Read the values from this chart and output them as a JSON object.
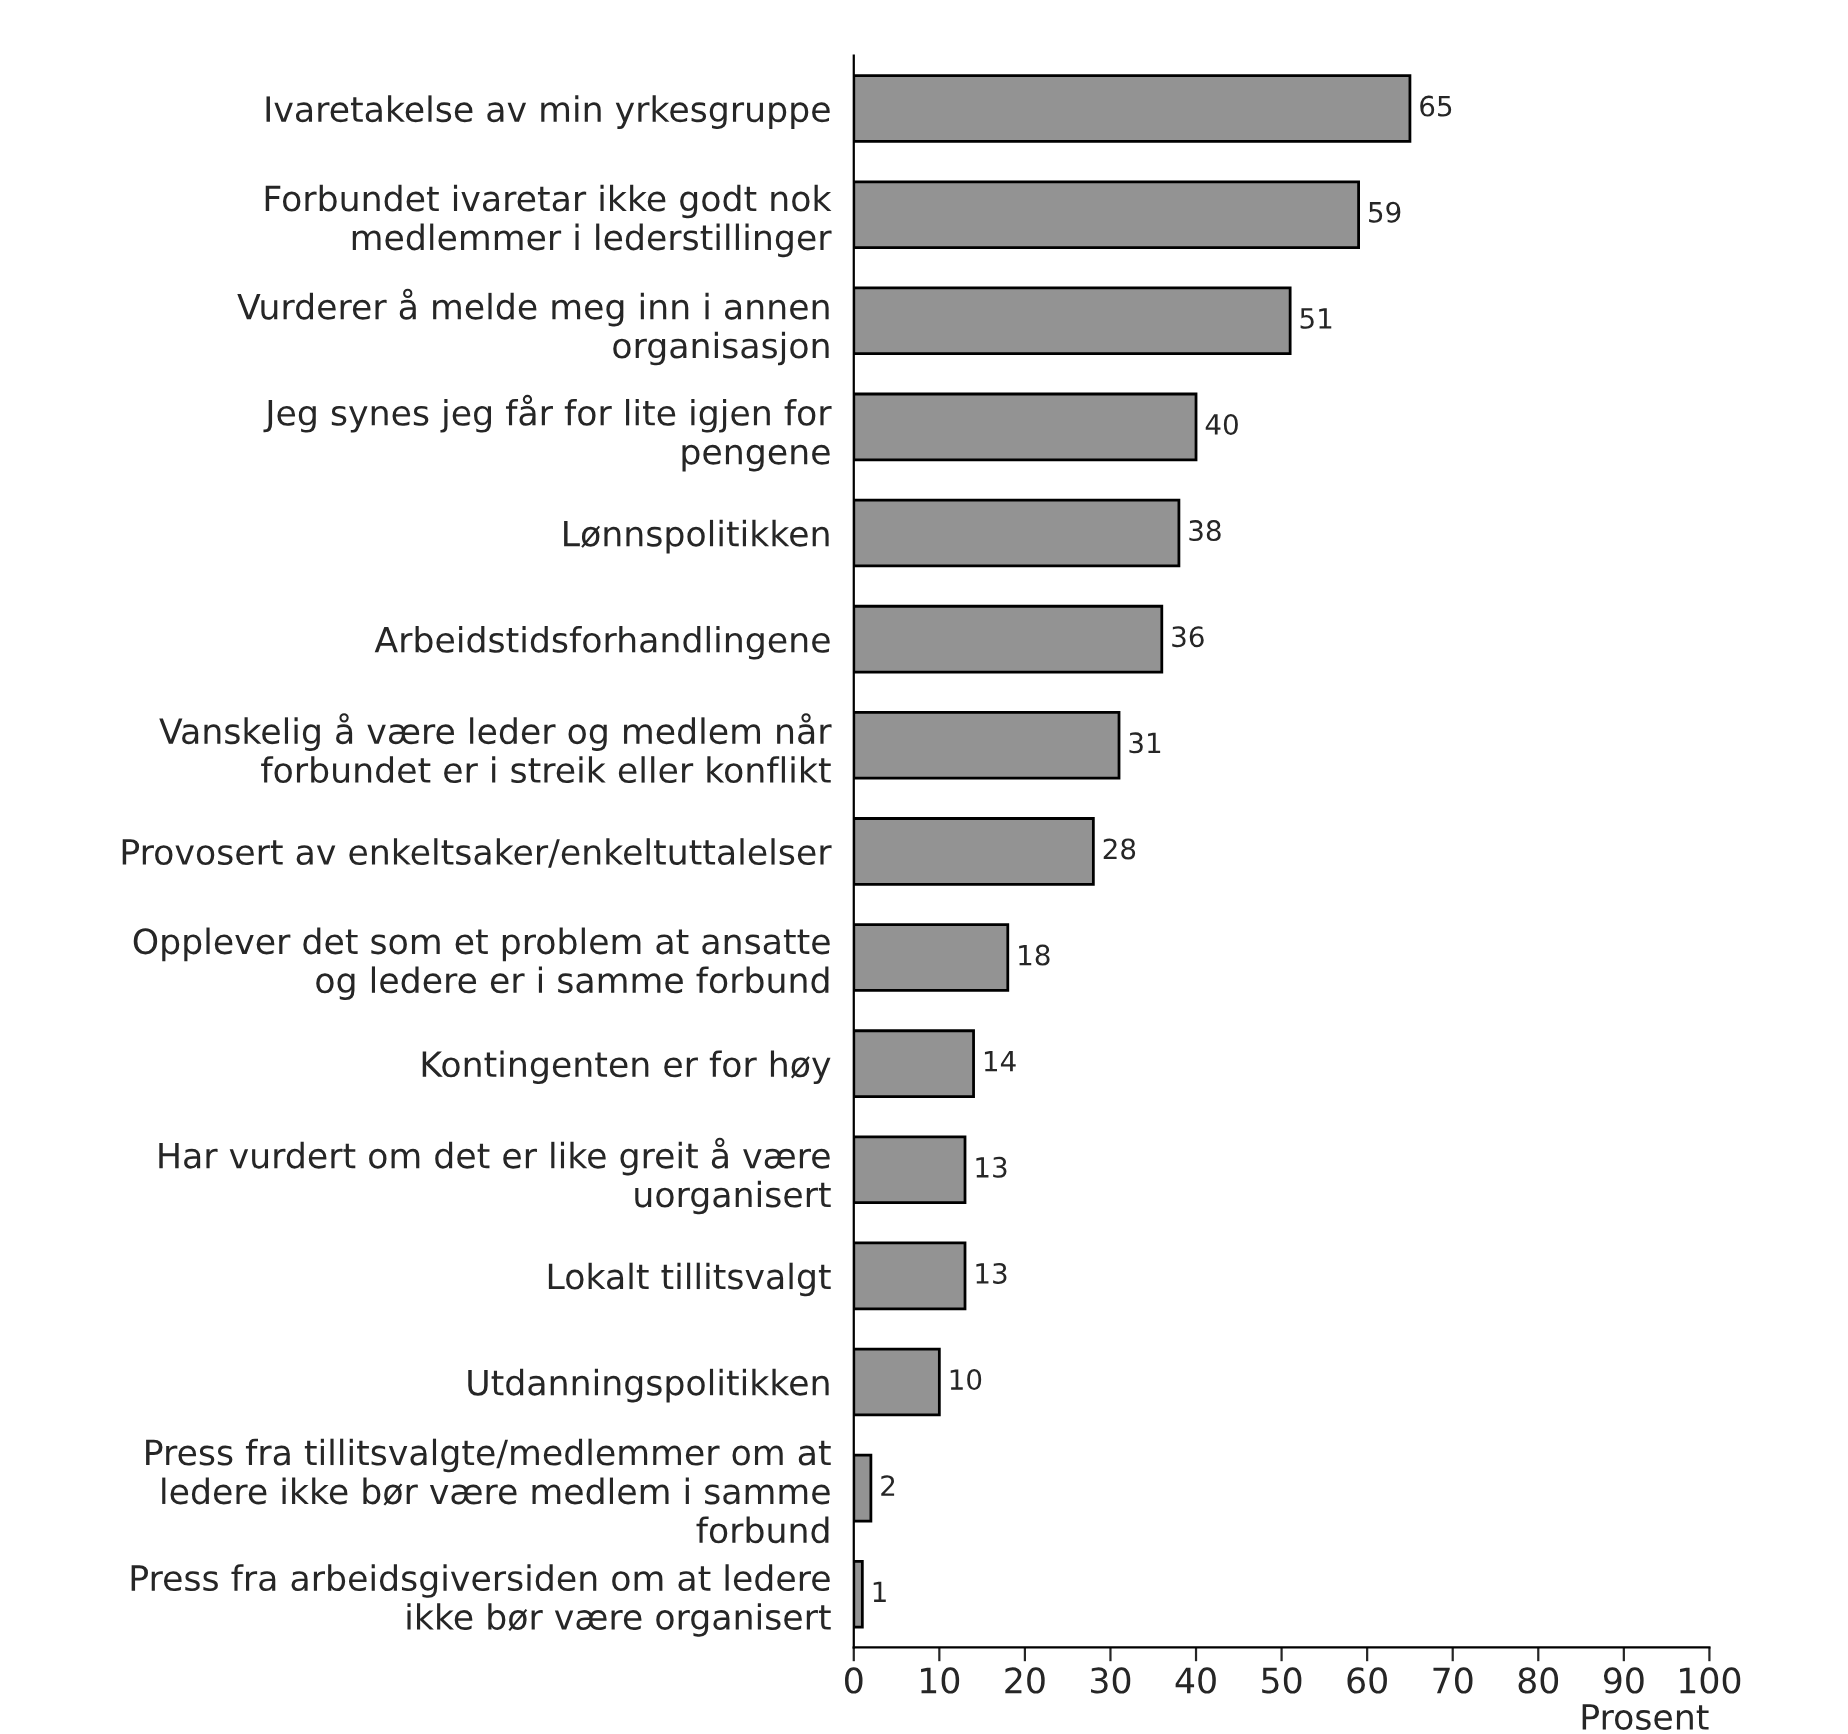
{
  "chart_data": {
    "type": "bar",
    "orientation": "horizontal",
    "xlabel": "Prosent",
    "categories": [
      "Ivaretakelse av min yrkesgruppe",
      "Forbundet ivaretar ikke godt nok\nmedlemmer i lederstillinger",
      "Vurderer å melde meg inn i annen\norganisasjon",
      "Jeg synes jeg får for lite igjen for\npengene",
      "Lønnspolitikken",
      "Arbeidstidsforhandlingene",
      "Vanskelig å være leder og medlem når\nforbundet er i streik eller konflikt",
      "Provosert av enkeltsaker/enkeltuttalelser",
      "Opplever det som et problem at ansatte\nog ledere er i samme forbund",
      "Kontingenten er for høy",
      "Har vurdert om det er like greit å være\nuorganisert",
      "Lokalt tillitsvalgt",
      "Utdanningspolitikken",
      "Press fra tillitsvalgte/medlemmer om at\nledere ikke bør være medlem i samme\nforbund",
      "Press fra arbeidsgiversiden om at ledere\nikke bør være organisert"
    ],
    "values": [
      65,
      59,
      51,
      40,
      38,
      36,
      31,
      28,
      18,
      14,
      13,
      13,
      10,
      2,
      1
    ],
    "color": "#939393",
    "xlim": [
      0,
      100
    ],
    "xticks": [
      0,
      10,
      20,
      30,
      40,
      50,
      60,
      70,
      80,
      90,
      100
    ],
    "data_labels": true,
    "grid": false,
    "legend": false
  }
}
